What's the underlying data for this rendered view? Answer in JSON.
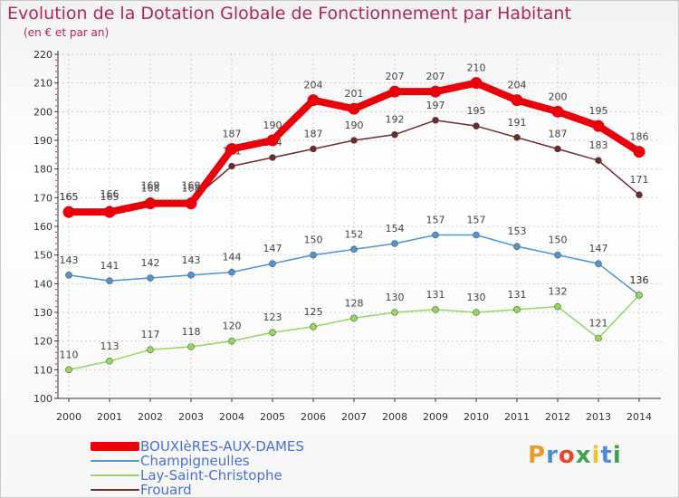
{
  "header": {
    "title": "Evolution de la Dotation Globale de Fonctionnement par Habitant",
    "subtitle": "(en € et par an)"
  },
  "logo": {
    "text": "Proxiti",
    "colors": [
      "#e89a2e",
      "#4a8fd6",
      "#e04a2a",
      "#3fa34d",
      "#e8c32e",
      "#4a8fd6",
      "#3fa34d"
    ]
  },
  "chart_data": {
    "type": "line",
    "title": "Evolution de la Dotation Globale de Fonctionnement par Habitant",
    "subtitle": "(en € et par an)",
    "x": [
      "2000",
      "2001",
      "2002",
      "2003",
      "2004",
      "2005",
      "2006",
      "2007",
      "2008",
      "2009",
      "2010",
      "2011",
      "2012",
      "2013",
      "2014"
    ],
    "ylim": [
      100,
      220
    ],
    "yticks": [
      "100",
      "110",
      "120",
      "130",
      "140",
      "150",
      "160",
      "170",
      "180",
      "190",
      "200",
      "210",
      "220"
    ],
    "grid": true,
    "legend_position": "bottom-left",
    "series": [
      {
        "name": "BOUXIèRES-AUX-DAMES",
        "color": "#e8000b",
        "values": [
          165,
          165,
          168,
          168,
          187,
          190,
          204,
          201,
          207,
          207,
          210,
          204,
          200,
          195,
          186
        ]
      },
      {
        "name": "Champigneulles",
        "color": "#4f94d1",
        "values": [
          143,
          141,
          142,
          143,
          144,
          147,
          150,
          152,
          154,
          157,
          157,
          153,
          150,
          147,
          136
        ]
      },
      {
        "name": "Lay-Saint-Christophe",
        "color": "#93d95a",
        "values": [
          110,
          113,
          117,
          118,
          120,
          123,
          125,
          128,
          130,
          131,
          130,
          131,
          132,
          121,
          136
        ]
      },
      {
        "name": "Frouard",
        "color": "#6e2a2a",
        "values": [
          165,
          166,
          169,
          169,
          181,
          184,
          187,
          190,
          192,
          197,
          195,
          191,
          187,
          183,
          171
        ]
      }
    ]
  }
}
